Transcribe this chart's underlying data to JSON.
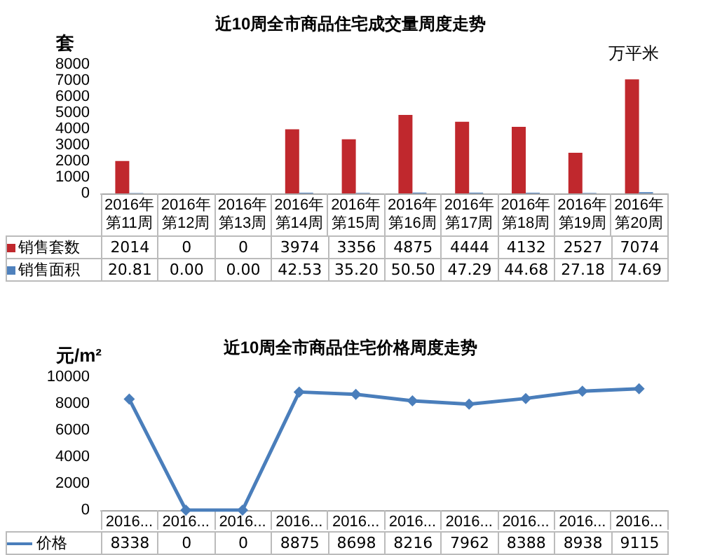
{
  "chart_data": [
    {
      "type": "bar",
      "title": "近10周全市商品住宅成交量周度走势",
      "ylabel": "套",
      "y2label": "万平米",
      "categories": [
        "2016年第11周",
        "2016年第12周",
        "2016年第13周",
        "2016年第14周",
        "2016年第15周",
        "2016年第16周",
        "2016年第17周",
        "2016年第18周",
        "2016年第19周",
        "2016年第20周"
      ],
      "series": [
        {
          "name": "销售套数",
          "color": "#c0282d",
          "values": [
            2014,
            0,
            0,
            3974,
            3356,
            4875,
            4444,
            4132,
            2527,
            7074
          ],
          "value_labels": [
            "2014",
            "0",
            "0",
            "3974",
            "3356",
            "4875",
            "4444",
            "4132",
            "2527",
            "7074"
          ]
        },
        {
          "name": "销售面积",
          "color": "#4f81bd",
          "values": [
            20.81,
            0,
            0,
            42.53,
            35.2,
            50.5,
            47.29,
            44.68,
            27.18,
            74.69
          ],
          "value_labels": [
            "20.81",
            "0.00",
            "0.00",
            "42.53",
            "35.20",
            "50.50",
            "47.29",
            "44.68",
            "27.18",
            "74.69"
          ]
        }
      ],
      "ylim": [
        0,
        8000
      ],
      "yticks": [
        0,
        1000,
        2000,
        3000,
        4000,
        5000,
        6000,
        7000,
        8000
      ],
      "grid": false,
      "legend": "bottom"
    },
    {
      "type": "line",
      "title": "近10周全市商品住宅价格周度走势",
      "ylabel": "元/m²",
      "categories": [
        "2016...",
        "2016...",
        "2016...",
        "2016...",
        "2016...",
        "2016...",
        "2016...",
        "2016...",
        "2016...",
        "2016..."
      ],
      "series": [
        {
          "name": "价格",
          "color": "#4a7ebb",
          "values": [
            8338,
            0,
            0,
            8875,
            8698,
            8216,
            7962,
            8388,
            8938,
            9115
          ],
          "value_labels": [
            "8338",
            "0",
            "0",
            "8875",
            "8698",
            "8216",
            "7962",
            "8388",
            "8938",
            "9115"
          ]
        }
      ],
      "ylim": [
        0,
        10000
      ],
      "yticks": [
        0,
        2000,
        4000,
        6000,
        8000,
        10000
      ],
      "grid": false,
      "legend": "bottom",
      "marker": "diamond",
      "line_style": "solid"
    }
  ]
}
